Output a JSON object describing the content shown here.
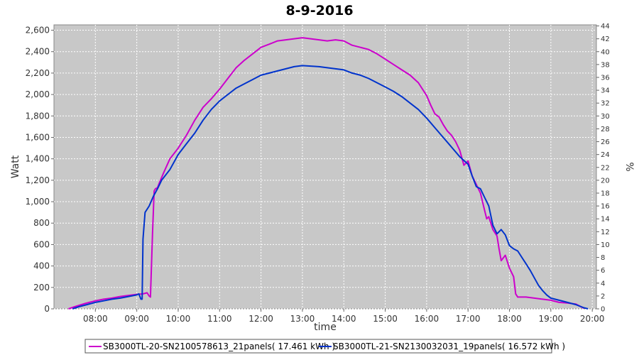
{
  "chart_data": {
    "type": "line",
    "title": "8-9-2016",
    "xlabel": "time",
    "ylabel": "Watt",
    "y2label": "%",
    "xlim": [
      7.0,
      20.1
    ],
    "ylim": [
      0,
      2650
    ],
    "y2lim": [
      0,
      44.17
    ],
    "x_ticks": [
      "08:00",
      "09:00",
      "10:00",
      "11:00",
      "12:00",
      "13:00",
      "14:00",
      "15:00",
      "16:00",
      "17:00",
      "18:00",
      "19:00",
      "20:00"
    ],
    "y_ticks": [
      "0",
      "200",
      "400",
      "600",
      "800",
      "1,000",
      "1,200",
      "1,400",
      "1,600",
      "1,800",
      "2,000",
      "2,200",
      "2,400",
      "2,600"
    ],
    "y2_ticks": [
      "0",
      "2",
      "4",
      "6",
      "8",
      "10",
      "12",
      "14",
      "16",
      "18",
      "20",
      "22",
      "24",
      "26",
      "28",
      "30",
      "32",
      "34",
      "36",
      "38",
      "40",
      "42",
      "44"
    ],
    "grid": true,
    "legend_position": "bottom",
    "series": [
      {
        "name": "SB3000TL-20-SN2100578613_21panels( 17.461 kWh )",
        "color": "#cc00cc",
        "points": [
          [
            7.35,
            0
          ],
          [
            7.5,
            20
          ],
          [
            7.75,
            50
          ],
          [
            8.0,
            75
          ],
          [
            8.2,
            90
          ],
          [
            8.4,
            100
          ],
          [
            8.6,
            115
          ],
          [
            8.8,
            125
          ],
          [
            9.0,
            135
          ],
          [
            9.15,
            140
          ],
          [
            9.25,
            150
          ],
          [
            9.3,
            120
          ],
          [
            9.33,
            110
          ],
          [
            9.38,
            700
          ],
          [
            9.42,
            1100
          ],
          [
            9.45,
            1120
          ],
          [
            9.5,
            1130
          ],
          [
            9.55,
            1180
          ],
          [
            9.65,
            1270
          ],
          [
            9.8,
            1400
          ],
          [
            10.0,
            1500
          ],
          [
            10.2,
            1620
          ],
          [
            10.4,
            1760
          ],
          [
            10.6,
            1880
          ],
          [
            10.8,
            1960
          ],
          [
            11.0,
            2050
          ],
          [
            11.2,
            2150
          ],
          [
            11.4,
            2250
          ],
          [
            11.6,
            2320
          ],
          [
            11.8,
            2380
          ],
          [
            12.0,
            2440
          ],
          [
            12.2,
            2470
          ],
          [
            12.4,
            2500
          ],
          [
            12.6,
            2510
          ],
          [
            12.8,
            2520
          ],
          [
            13.0,
            2530
          ],
          [
            13.2,
            2520
          ],
          [
            13.4,
            2510
          ],
          [
            13.6,
            2500
          ],
          [
            13.8,
            2510
          ],
          [
            14.0,
            2500
          ],
          [
            14.2,
            2460
          ],
          [
            14.4,
            2440
          ],
          [
            14.6,
            2420
          ],
          [
            14.8,
            2380
          ],
          [
            15.0,
            2330
          ],
          [
            15.2,
            2280
          ],
          [
            15.4,
            2230
          ],
          [
            15.6,
            2180
          ],
          [
            15.8,
            2110
          ],
          [
            16.0,
            1990
          ],
          [
            16.1,
            1900
          ],
          [
            16.2,
            1820
          ],
          [
            16.3,
            1790
          ],
          [
            16.4,
            1720
          ],
          [
            16.5,
            1660
          ],
          [
            16.6,
            1620
          ],
          [
            16.7,
            1560
          ],
          [
            16.8,
            1480
          ],
          [
            16.9,
            1340
          ],
          [
            17.0,
            1380
          ],
          [
            17.1,
            1240
          ],
          [
            17.2,
            1160
          ],
          [
            17.3,
            1080
          ],
          [
            17.4,
            920
          ],
          [
            17.45,
            840
          ],
          [
            17.5,
            860
          ],
          [
            17.6,
            740
          ],
          [
            17.7,
            680
          ],
          [
            17.75,
            560
          ],
          [
            17.8,
            450
          ],
          [
            17.9,
            500
          ],
          [
            18.0,
            380
          ],
          [
            18.1,
            300
          ],
          [
            18.15,
            140
          ],
          [
            18.2,
            110
          ],
          [
            18.4,
            110
          ],
          [
            18.6,
            100
          ],
          [
            18.8,
            90
          ],
          [
            19.0,
            80
          ],
          [
            19.2,
            60
          ],
          [
            19.4,
            55
          ],
          [
            19.6,
            45
          ],
          [
            19.8,
            5
          ]
        ]
      },
      {
        "name": "SB3000TL-21-SN2130032031_19panels( 16.572 kWh )",
        "color": "#0033cc",
        "points": [
          [
            7.45,
            0
          ],
          [
            7.6,
            20
          ],
          [
            7.8,
            40
          ],
          [
            8.0,
            60
          ],
          [
            8.2,
            75
          ],
          [
            8.4,
            90
          ],
          [
            8.6,
            100
          ],
          [
            8.8,
            115
          ],
          [
            9.0,
            130
          ],
          [
            9.05,
            140
          ],
          [
            9.1,
            90
          ],
          [
            9.13,
            90
          ],
          [
            9.15,
            650
          ],
          [
            9.2,
            900
          ],
          [
            9.3,
            960
          ],
          [
            9.4,
            1050
          ],
          [
            9.5,
            1120
          ],
          [
            9.6,
            1200
          ],
          [
            9.8,
            1300
          ],
          [
            10.0,
            1440
          ],
          [
            10.2,
            1540
          ],
          [
            10.4,
            1640
          ],
          [
            10.6,
            1760
          ],
          [
            10.8,
            1860
          ],
          [
            11.0,
            1940
          ],
          [
            11.2,
            2000
          ],
          [
            11.4,
            2060
          ],
          [
            11.6,
            2100
          ],
          [
            11.8,
            2140
          ],
          [
            12.0,
            2180
          ],
          [
            12.2,
            2200
          ],
          [
            12.4,
            2220
          ],
          [
            12.6,
            2240
          ],
          [
            12.8,
            2260
          ],
          [
            13.0,
            2270
          ],
          [
            13.2,
            2265
          ],
          [
            13.4,
            2260
          ],
          [
            13.6,
            2250
          ],
          [
            13.8,
            2240
          ],
          [
            14.0,
            2230
          ],
          [
            14.2,
            2200
          ],
          [
            14.4,
            2180
          ],
          [
            14.6,
            2150
          ],
          [
            14.8,
            2110
          ],
          [
            15.0,
            2070
          ],
          [
            15.2,
            2030
          ],
          [
            15.4,
            1980
          ],
          [
            15.6,
            1920
          ],
          [
            15.8,
            1860
          ],
          [
            16.0,
            1780
          ],
          [
            16.2,
            1690
          ],
          [
            16.4,
            1600
          ],
          [
            16.6,
            1510
          ],
          [
            16.8,
            1420
          ],
          [
            17.0,
            1350
          ],
          [
            17.1,
            1240
          ],
          [
            17.2,
            1140
          ],
          [
            17.3,
            1120
          ],
          [
            17.4,
            1040
          ],
          [
            17.5,
            960
          ],
          [
            17.6,
            780
          ],
          [
            17.7,
            700
          ],
          [
            17.8,
            740
          ],
          [
            17.9,
            690
          ],
          [
            18.0,
            590
          ],
          [
            18.1,
            560
          ],
          [
            18.2,
            540
          ],
          [
            18.3,
            480
          ],
          [
            18.4,
            420
          ],
          [
            18.5,
            360
          ],
          [
            18.6,
            290
          ],
          [
            18.7,
            220
          ],
          [
            18.8,
            170
          ],
          [
            18.9,
            130
          ],
          [
            19.0,
            100
          ],
          [
            19.2,
            80
          ],
          [
            19.4,
            60
          ],
          [
            19.6,
            40
          ],
          [
            19.8,
            10
          ],
          [
            19.9,
            0
          ]
        ]
      }
    ]
  }
}
